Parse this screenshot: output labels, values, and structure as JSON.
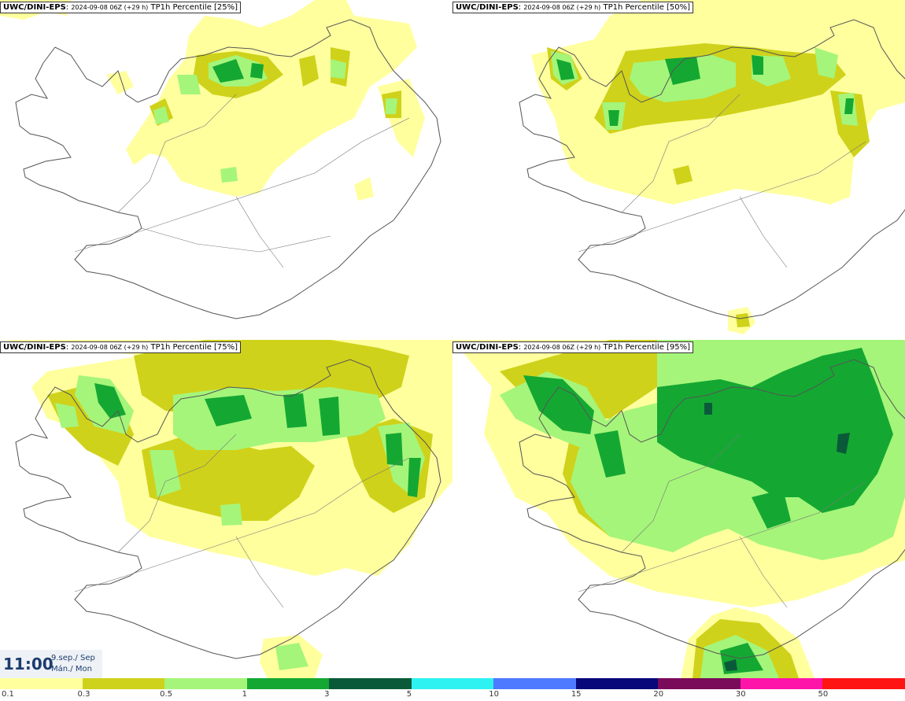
{
  "panels": [
    {
      "model": "UWC/DINI-EPS",
      "run": "2024-09-08 06Z (+29 h)",
      "field": "TP1h Percentile [25%]"
    },
    {
      "model": "UWC/DINI-EPS",
      "run": "2024-09-08 06Z (+29 h)",
      "field": "TP1h Percentile [50%]"
    },
    {
      "model": "UWC/DINI-EPS",
      "run": "2024-09-08 06Z (+29 h)",
      "field": "TP1h Percentile [75%]"
    },
    {
      "model": "UWC/DINI-EPS",
      "run": "2024-09-08 06Z (+29 h)",
      "field": "TP1h Percentile [95%]"
    }
  ],
  "valid_time": {
    "time": "11:00",
    "date": "9.sep./ Sep",
    "weekday": "Mán./ Mon"
  },
  "legend": {
    "labels": [
      "0.1",
      "0.3",
      "0.5",
      "1",
      "3",
      "5",
      "10",
      "15",
      "20",
      "30",
      "50"
    ],
    "colors": [
      "#ffff9e",
      "#cfd21a",
      "#a5f57a",
      "#14a832",
      "#0a5a3a",
      "#2ef2f2",
      "#4d7aff",
      "#08087a",
      "#7a0a5a",
      "#ff14aa",
      "#ff1414"
    ]
  },
  "colors": {
    "coast": "#555555",
    "background": "#ffffff"
  }
}
